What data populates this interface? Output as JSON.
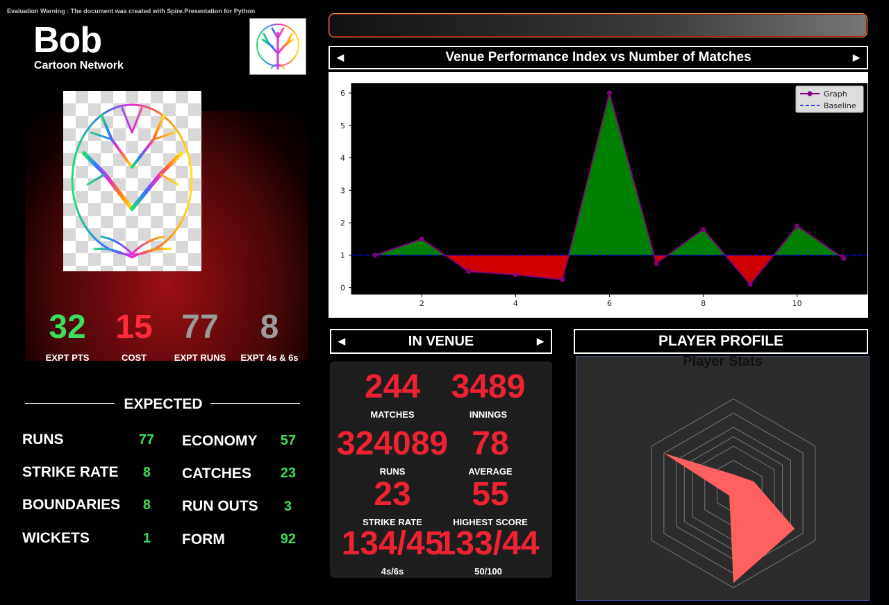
{
  "warning": "Evaluation Warning : The document was created with Spire.Presentation for Python",
  "player": {
    "name": "Bob",
    "team": "Cartoon Network"
  },
  "colors": {
    "green": "#3ddc5a",
    "red": "#ff2a3a",
    "grey": "#9a9a9a",
    "accent_red": "#ee2233"
  },
  "kpis": [
    {
      "value": "32",
      "label": "EXPT PTS",
      "color": "#3ddc5a"
    },
    {
      "value": "15",
      "label": "COST",
      "color": "#ff2a3a"
    },
    {
      "value": "77",
      "label": "EXPT RUNS",
      "color": "#9a9a9a"
    },
    {
      "value": "8",
      "label": "EXPT 4s & 6s",
      "color": "#9a9a9a"
    }
  ],
  "expected": {
    "title": "EXPECTED",
    "left": [
      {
        "label": "RUNS",
        "value": "77"
      },
      {
        "label": "STRIKE RATE",
        "value": "8"
      },
      {
        "label": "BOUNDARIES",
        "value": "8"
      },
      {
        "label": "WICKETS",
        "value": "1"
      }
    ],
    "right": [
      {
        "label": "ECONOMY",
        "value": "57"
      },
      {
        "label": "CATCHES",
        "value": "23"
      },
      {
        "label": "RUN OUTS",
        "value": "3"
      },
      {
        "label": "FORM",
        "value": "92"
      }
    ]
  },
  "chart_header": "Venue Performance Index vs Number of Matches",
  "chart_data": {
    "type": "line",
    "x": [
      1,
      2,
      3,
      4,
      5,
      6,
      7,
      8,
      9,
      10,
      11
    ],
    "series": [
      {
        "name": "Graph",
        "values": [
          1.0,
          1.5,
          0.5,
          0.4,
          0.25,
          6.0,
          0.75,
          1.8,
          0.1,
          1.9,
          0.9
        ],
        "color": "#800080"
      },
      {
        "name": "Baseline",
        "values": [
          1,
          1,
          1,
          1,
          1,
          1,
          1,
          1,
          1,
          1,
          1
        ],
        "color": "#0000ff",
        "style": "dashed"
      }
    ],
    "baseline": 1,
    "fill_above": "#008000",
    "fill_below": "#d00000",
    "xticks": [
      2,
      4,
      6,
      8,
      10
    ],
    "yticks": [
      0,
      1,
      2,
      3,
      4,
      5,
      6
    ],
    "xlim": [
      0.5,
      11.5
    ],
    "ylim": [
      -0.2,
      6.3
    ],
    "legend": "top-right",
    "background": "#000000",
    "grid": false
  },
  "venue": {
    "header": "IN VENUE",
    "stats": [
      {
        "value": "244",
        "label": "MATCHES"
      },
      {
        "value": "3489",
        "label": "INNINGS"
      },
      {
        "value": "324089",
        "label": "RUNS"
      },
      {
        "value": "78",
        "label": "AVERAGE"
      },
      {
        "value": "23",
        "label": "STRIKE RATE"
      },
      {
        "value": "55",
        "label": "HIGHEST SCORE"
      },
      {
        "value": "134/45",
        "label": "4s/6s"
      },
      {
        "value": "133/44",
        "label": "50/100"
      }
    ]
  },
  "profile": {
    "header": "PLAYER PROFILE",
    "radar_title": "Player Stats",
    "radar_values": [
      0.2,
      0.25,
      0.75,
      0.95,
      0.05,
      0.85
    ],
    "radar_color": "#ff6060"
  }
}
